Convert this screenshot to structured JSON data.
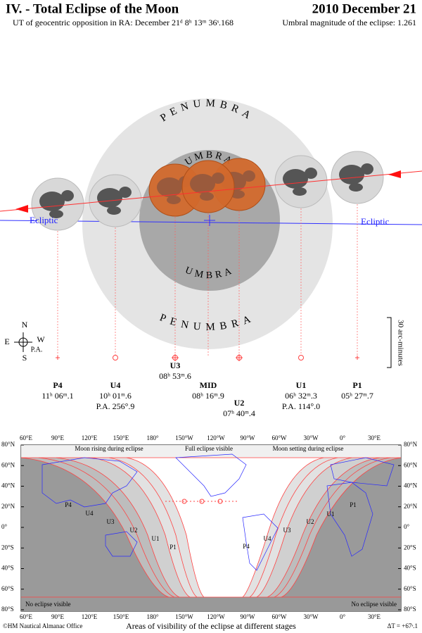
{
  "header": {
    "title": "IV. - Total Eclipse of the Moon",
    "date": "2010 December 21",
    "subtitle_left": "UT of geocentric opposition in RA: December 21ᵈ 8ʰ 13ᵐ 36ˢ.168",
    "subtitle_right": "Umbral magnitude of the eclipse: 1.261"
  },
  "diagram": {
    "penumbra_top": "PENUMBRA",
    "penumbra_bottom": "PENUMBRA",
    "umbra_top": "UMBRA",
    "umbra_bottom": "UMBRA",
    "ecliptic_left": "Ecliptic",
    "ecliptic_right": "Ecliptic",
    "compass": {
      "north": "N",
      "south": "S",
      "east": "E",
      "west": "W",
      "pa": "P.A."
    },
    "scale": "30 arc-minutes",
    "contacts": [
      {
        "name": "P4",
        "time": "11ʰ 06ᵐ.1"
      },
      {
        "name": "U4",
        "time": "10ʰ 01ᵐ.6",
        "pa": "P.A. 256°.9"
      },
      {
        "name": "U3",
        "time": "08ʰ 53ᵐ.6"
      },
      {
        "name": "MID",
        "time": "08ʰ 16ᵐ.9"
      },
      {
        "name": "U2",
        "time": "07ʰ 40ᵐ.4"
      },
      {
        "name": "U1",
        "time": "06ʰ 32ᵐ.3",
        "pa": "P.A. 114°.0"
      },
      {
        "name": "P1",
        "time": "05ʰ 27ᵐ.7"
      }
    ]
  },
  "map": {
    "latitudes": [
      "80°N",
      "60°N",
      "40°N",
      "20°N",
      "0°",
      "20°S",
      "40°S",
      "60°S",
      "80°S"
    ],
    "longitudes": [
      "60°E",
      "90°E",
      "120°E",
      "150°E",
      "180°",
      "150°W",
      "120°W",
      "90°W",
      "60°W",
      "30°W",
      "0°",
      "30°E"
    ],
    "top_labels": [
      "Moon rising during eclipse",
      "Full eclipse visible",
      "Moon setting during eclipse"
    ],
    "no_eclipse_left": "No eclipse visible",
    "no_eclipse_right": "No eclipse visible",
    "curve_labels_left": [
      "P4",
      "U4",
      "U3",
      "U2",
      "U1",
      "P1"
    ],
    "curve_labels_right": [
      "P4",
      "U4",
      "U3",
      "U2",
      "U1",
      "P1"
    ],
    "footer_left": "©HM Nautical Almanac Office",
    "caption": "Areas of visibility of the eclipse at different stages",
    "delta_t": "ΔT = +67ˢ.1"
  }
}
